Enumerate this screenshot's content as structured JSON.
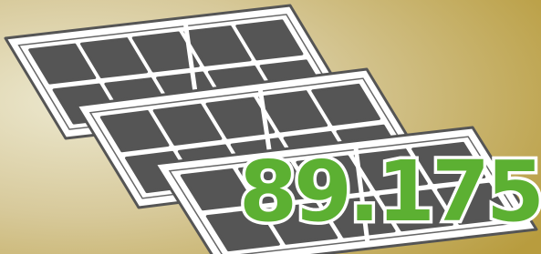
{
  "value_text": "89.175"
}
